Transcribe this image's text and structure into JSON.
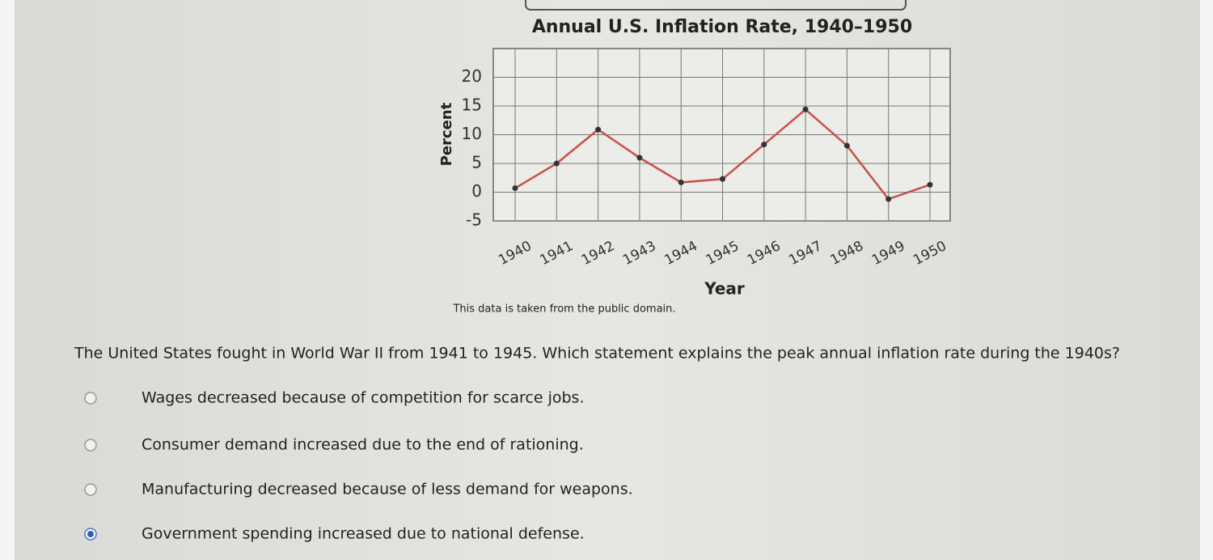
{
  "chart_data": {
    "type": "line",
    "title": "Annual U.S. Inflation Rate, 1940–1950",
    "xlabel": "Year",
    "ylabel": "Percent",
    "categories": [
      "1940",
      "1941",
      "1942",
      "1943",
      "1944",
      "1945",
      "1946",
      "1947",
      "1948",
      "1949",
      "1950"
    ],
    "values": [
      0.7,
      5,
      10.9,
      6,
      1.7,
      2.3,
      8.3,
      14.4,
      8.1,
      -1.2,
      1.3
    ],
    "color": "#c8504a",
    "marker_color": "#333333",
    "ylim": [
      -5,
      25
    ],
    "yticks": [
      -5,
      0,
      5,
      10,
      15,
      20
    ],
    "grid": true,
    "note": "This data is taken from the public domain."
  },
  "question": "The United States fought in World War II from 1941 to 1945. Which statement explains the peak annual inflation rate during the 1940s?",
  "options": [
    "Wages decreased because of competition for scarce jobs.",
    "Consumer demand increased due to the end of rationing.",
    "Manufacturing decreased because of less demand for weapons.",
    "Government spending increased due to national defense."
  ],
  "selected": 3
}
